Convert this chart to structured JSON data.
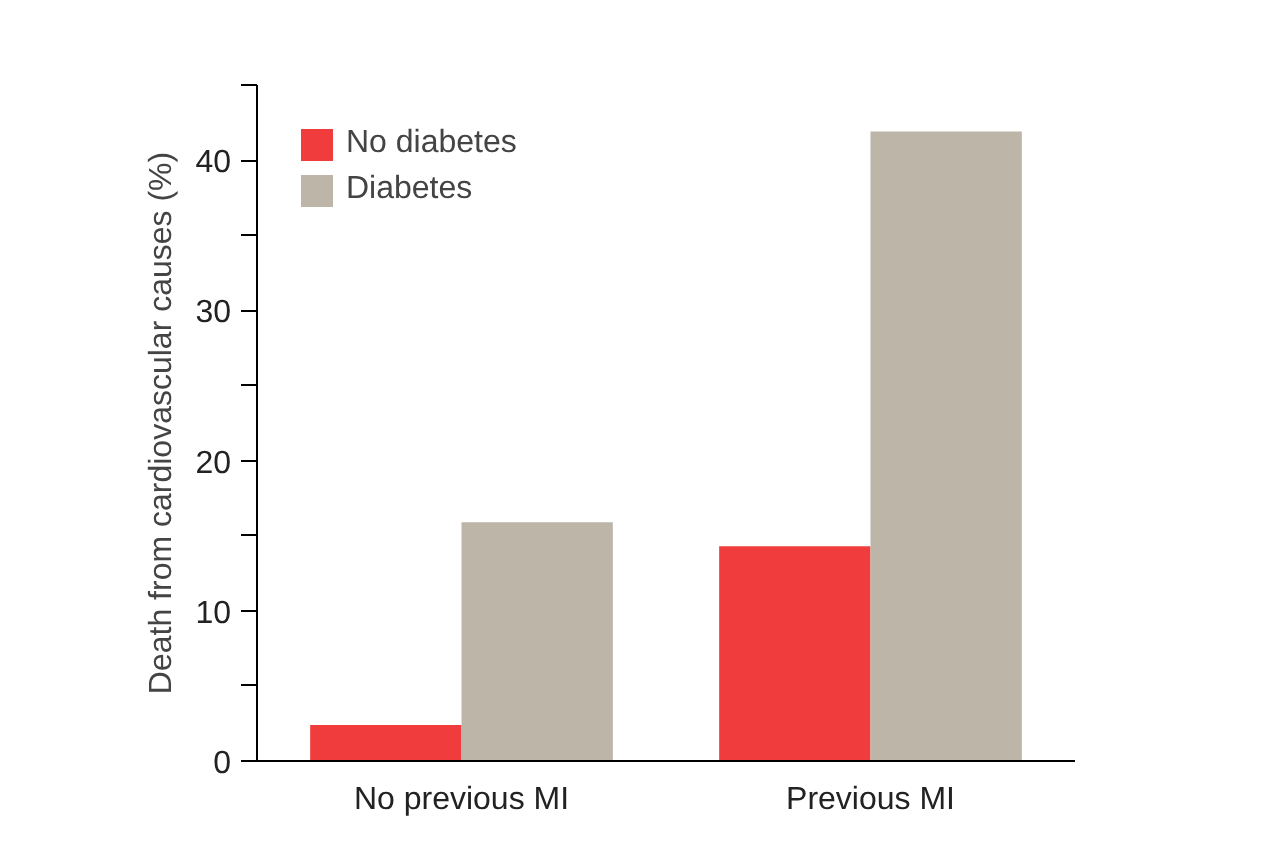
{
  "chart_data": {
    "type": "bar",
    "categories": [
      "No previous MI",
      "Previous MI"
    ],
    "ylabel": "Death from cardiovascular causes (%)",
    "series": [
      {
        "name": "No diabetes",
        "color": "#f03c3c",
        "values": [
          2.4,
          14.3
        ]
      },
      {
        "name": "Diabetes",
        "color": "#bcb5a8",
        "values": [
          15.9,
          41.9
        ]
      }
    ],
    "ylim": [
      0,
      45
    ],
    "yticks": [
      0,
      {
        "value": 5,
        "label": null
      },
      10,
      {
        "value": 15,
        "label": null
      },
      20,
      {
        "value": 25,
        "label": null
      },
      30,
      {
        "value": 35,
        "label": null
      },
      40,
      {
        "value": 45,
        "label": null
      }
    ],
    "grid": false,
    "legend": "top left"
  }
}
